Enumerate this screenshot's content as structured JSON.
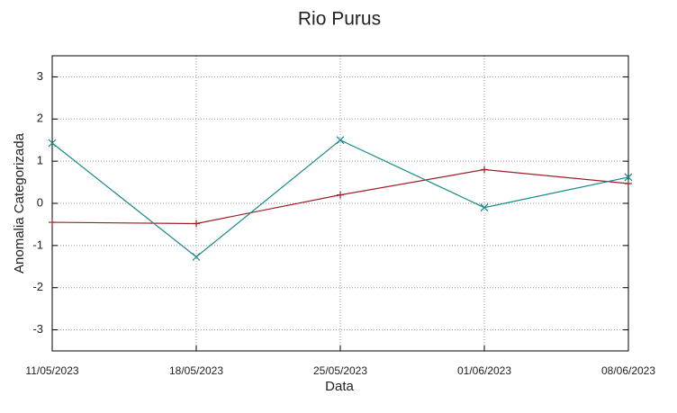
{
  "chart_data": {
    "type": "line",
    "title": "Rio Purus",
    "x_label": "Data",
    "y_label": "Anomalia Categorizada",
    "categories": [
      "11/05/2023",
      "18/05/2023",
      "25/05/2023",
      "01/06/2023",
      "08/06/2023"
    ],
    "series": [
      {
        "color": "#9e1f24",
        "marker": "+",
        "values": [
          -0.45,
          -0.48,
          0.2,
          0.8,
          0.47
        ]
      },
      {
        "color": "#17898c",
        "marker": "x",
        "values": [
          1.43,
          -1.27,
          1.5,
          -0.1,
          0.62
        ]
      }
    ],
    "ylim": [
      -3.5,
      3.5
    ],
    "yticks": [
      -3,
      -2,
      -1,
      0,
      1,
      2,
      3
    ],
    "grid": true
  }
}
